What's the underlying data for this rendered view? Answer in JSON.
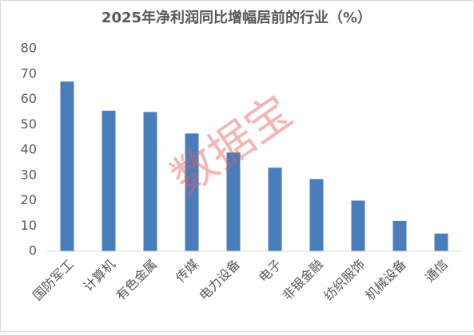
{
  "chart_data": {
    "type": "bar",
    "title": "2025年净利润同比增幅居前的行业（%）",
    "categories": [
      "国防军工",
      "计算机",
      "有色金属",
      "传媒",
      "电力设备",
      "电子",
      "非银金融",
      "纺织服饰",
      "机械设备",
      "通信"
    ],
    "values": [
      67,
      55.5,
      55,
      46.5,
      39,
      33,
      28.5,
      20,
      12,
      7
    ],
    "color": "#4a7ebb",
    "ylim": [
      0,
      80
    ],
    "yticks": [
      0,
      10,
      20,
      30,
      40,
      50,
      60,
      70,
      80
    ],
    "grid": false,
    "watermark": "数据宝"
  }
}
